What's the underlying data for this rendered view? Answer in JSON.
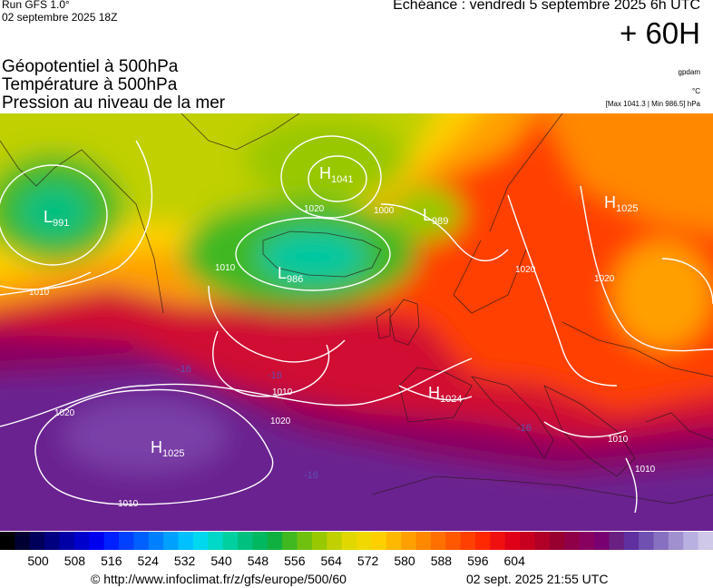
{
  "header": {
    "run": "Run GFS 1.0°",
    "run_date": "02 septembre 2025 18Z",
    "echeance": "Echéance : vendredi 5 septembre 2025 6h UTC",
    "horizon": "+ 60H"
  },
  "parameters": [
    "Géopotentiel à 500hPa",
    "Température à 500hPa",
    "Pression au niveau de la mer"
  ],
  "units": {
    "geopotential": "gpdam",
    "temperature": "°C",
    "pressure_range": "[Max 1041.3 | Min 986.5] hPa"
  },
  "pressure_centers": [
    {
      "type": "L",
      "value": "991"
    },
    {
      "type": "H",
      "value": "1041"
    },
    {
      "type": "L",
      "value": "989"
    },
    {
      "type": "L",
      "value": "986"
    },
    {
      "type": "H",
      "value": "1025"
    },
    {
      "type": "H",
      "value": "1024"
    },
    {
      "type": "H",
      "value": "1025"
    }
  ],
  "isobar_labels": [
    "1010",
    "1020",
    "1000",
    "1010",
    "1020",
    "1010",
    "1020",
    "1010",
    "1010",
    "1010",
    "1020",
    "1020"
  ],
  "scale": {
    "colors": [
      "#000000",
      "#000033",
      "#00005a",
      "#000080",
      "#0000a6",
      "#0000cc",
      "#0000f0",
      "#0020ff",
      "#0040ff",
      "#0060ff",
      "#0080ff",
      "#00a0ff",
      "#00c0ff",
      "#00d8f0",
      "#00d8c8",
      "#00d0a0",
      "#00c080",
      "#00b860",
      "#10b040",
      "#40b820",
      "#70c010",
      "#98c800",
      "#c0d000",
      "#e0d800",
      "#f0d800",
      "#ffd000",
      "#ffb800",
      "#ffa000",
      "#ff8800",
      "#ff7000",
      "#ff5800",
      "#ff4000",
      "#ff2800",
      "#f01010",
      "#e00018",
      "#c80020",
      "#b00028",
      "#980030",
      "#900048",
      "#880060",
      "#780070",
      "#6a2080",
      "#6030a0",
      "#7050b0",
      "#8870c0",
      "#a090d0",
      "#b8b0e0",
      "#d0c8e8"
    ],
    "ticks": [
      "500",
      "508",
      "516",
      "524",
      "532",
      "540",
      "548",
      "556",
      "564",
      "572",
      "580",
      "588",
      "596",
      "604"
    ]
  },
  "footer": {
    "credit": "© http://www.infoclimat.fr/z/gfs/europe/500/60",
    "timestamp": "02 sept. 2025 21:55 UTC"
  }
}
